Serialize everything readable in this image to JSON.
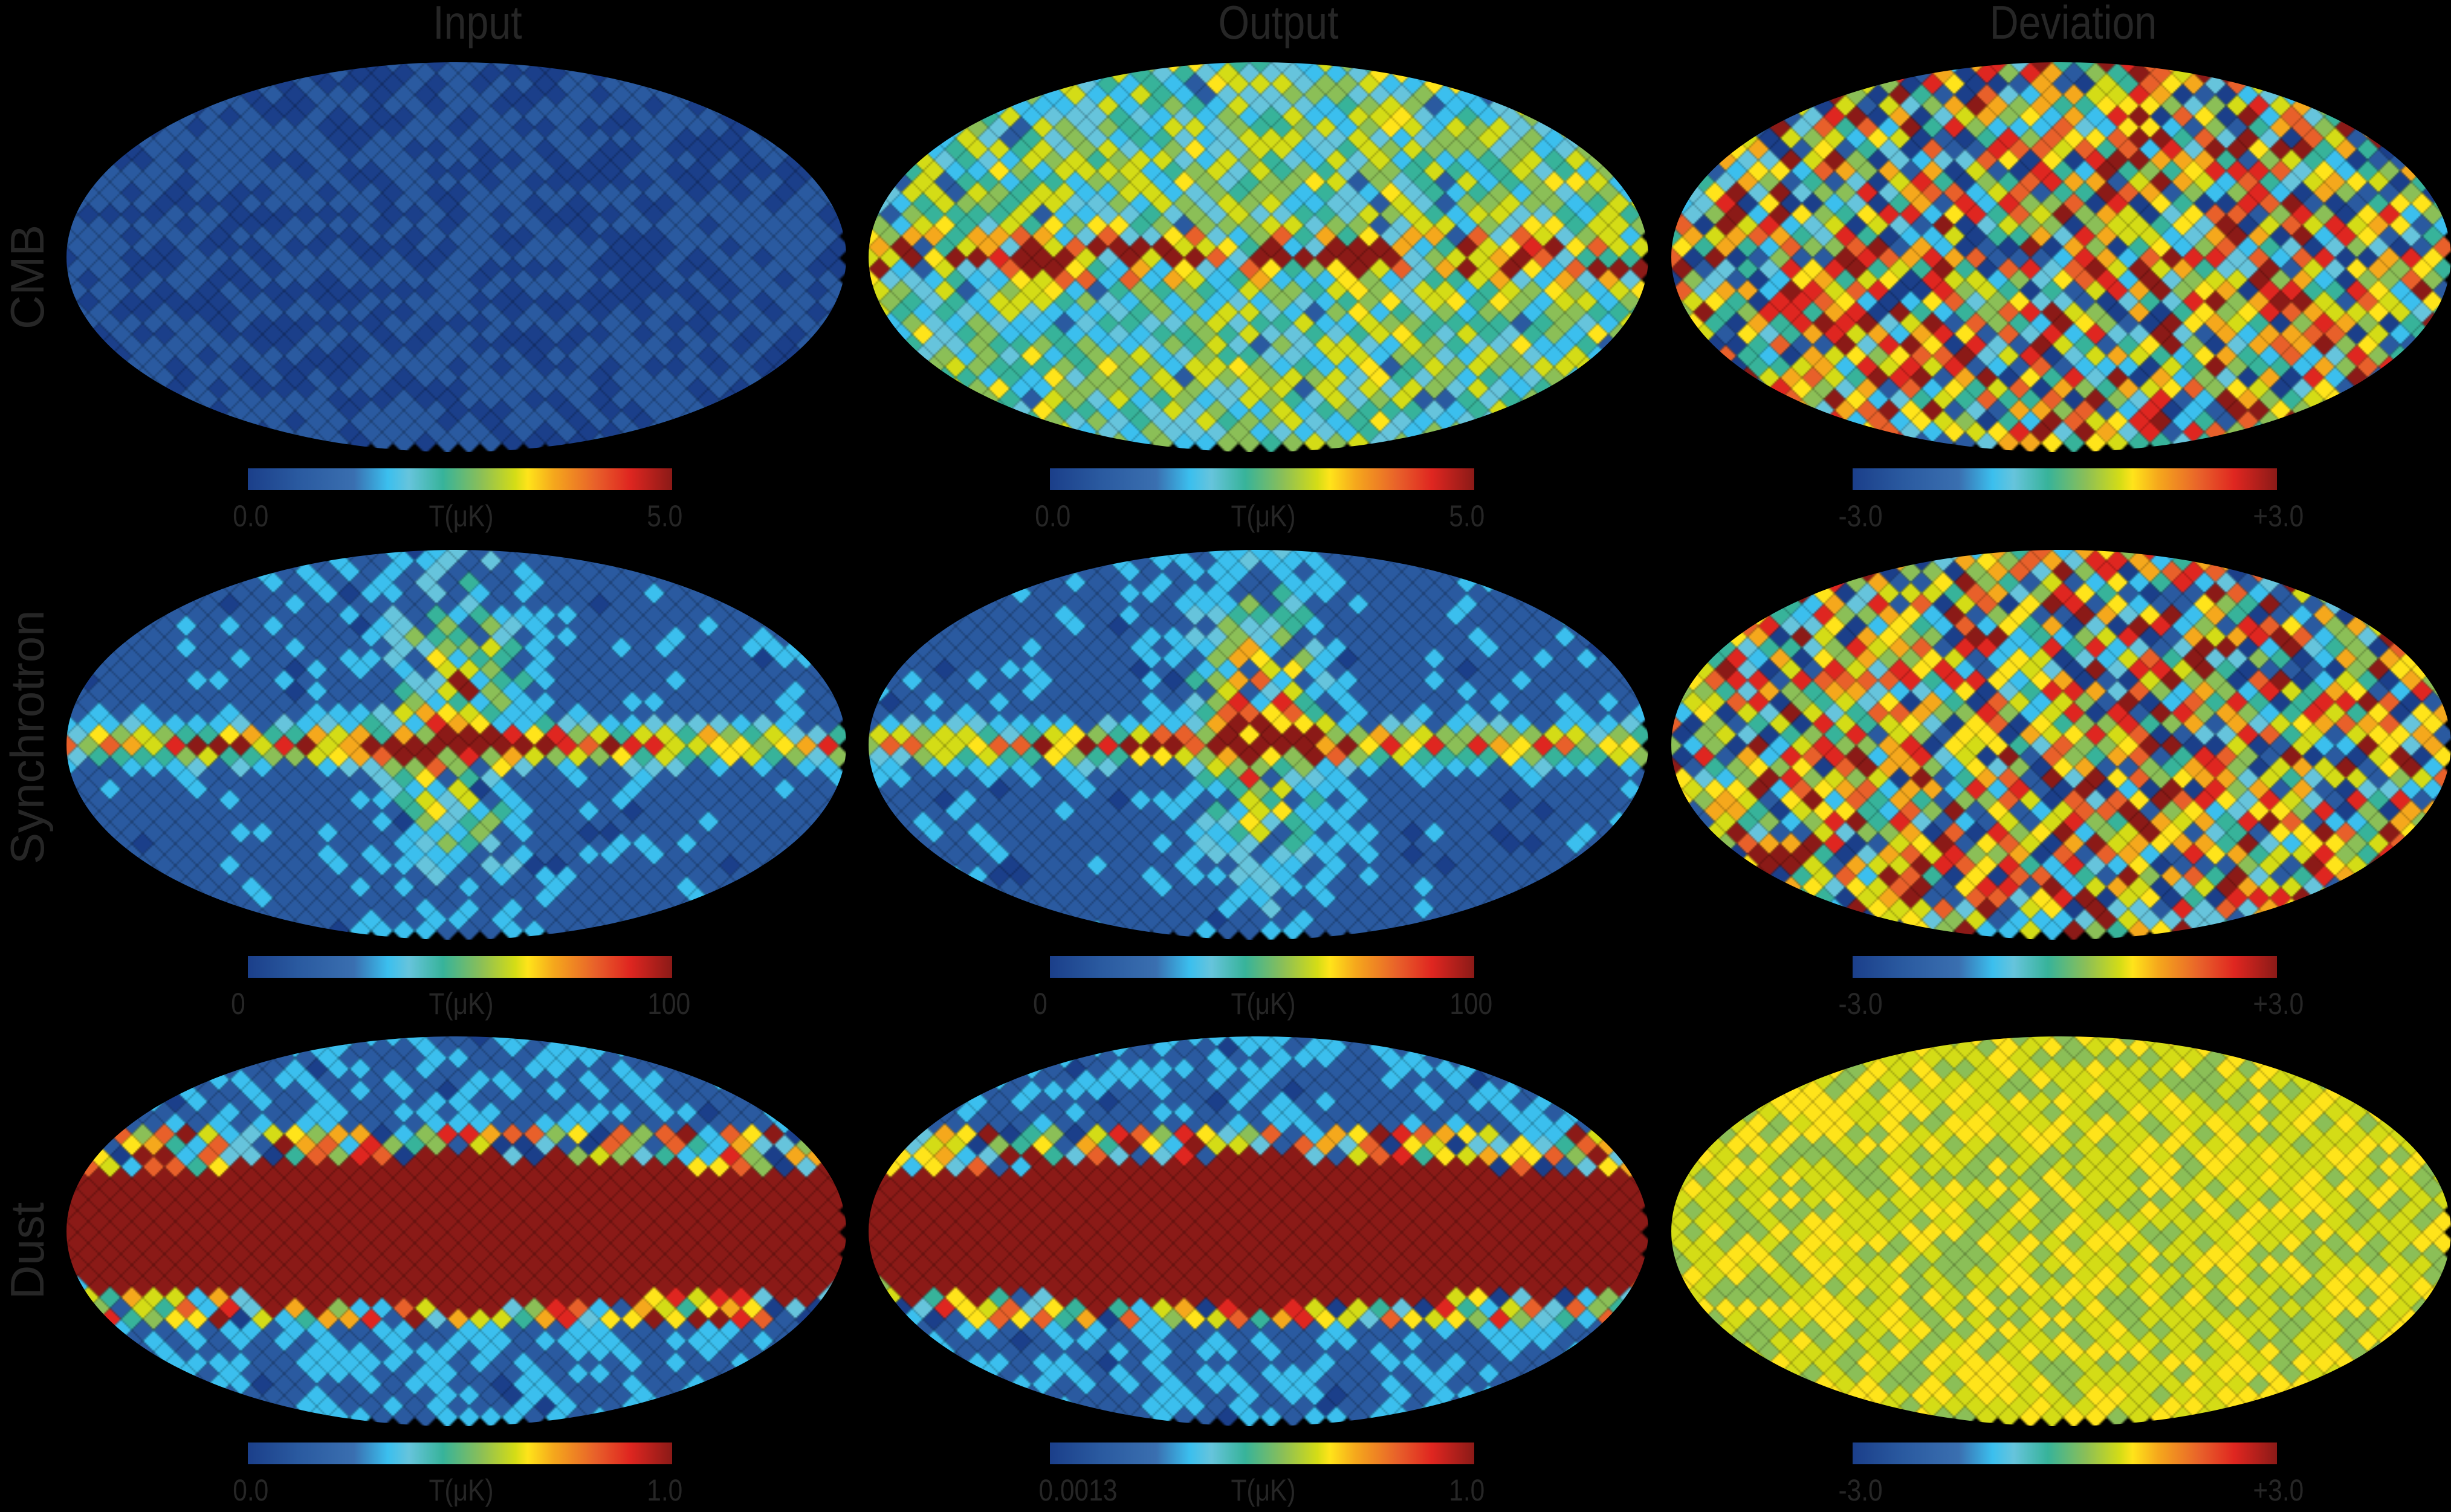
{
  "chart_data": {
    "type": "heatmap",
    "projection": "Mollweide all-sky",
    "columns": [
      "Input",
      "Output",
      "Deviation"
    ],
    "rows": [
      "CMB",
      "Synchrotron",
      "Dust"
    ],
    "colormap": [
      "#1b3f8a",
      "#2a5aa0",
      "#3bbfee",
      "#66c4dc",
      "#37b39a",
      "#8bbf57",
      "#d4dc16",
      "#ffe41a",
      "#f5a81c",
      "#e8602a",
      "#df2620",
      "#8b1a17"
    ],
    "panels": [
      {
        "row": "CMB",
        "col": "Input",
        "colorbar": {
          "min": "0.0",
          "label": "T(μK)",
          "max": "5.0"
        }
      },
      {
        "row": "CMB",
        "col": "Output",
        "colorbar": {
          "min": "0.0",
          "label": "T(μK)",
          "max": "5.0"
        }
      },
      {
        "row": "CMB",
        "col": "Deviation",
        "colorbar": {
          "min": "-3.0",
          "label": "",
          "max": "+3.0"
        }
      },
      {
        "row": "Synchrotron",
        "col": "Input",
        "colorbar": {
          "min": "0",
          "label": "T(μK)",
          "max": "100"
        }
      },
      {
        "row": "Synchrotron",
        "col": "Output",
        "colorbar": {
          "min": "0",
          "label": "T(μK)",
          "max": "100"
        }
      },
      {
        "row": "Synchrotron",
        "col": "Deviation",
        "colorbar": {
          "min": "-3.0",
          "label": "",
          "max": "+3.0"
        }
      },
      {
        "row": "Dust",
        "col": "Input",
        "colorbar": {
          "min": "0.0",
          "label": "T(μK)",
          "max": "1.0"
        }
      },
      {
        "row": "Dust",
        "col": "Output",
        "colorbar": {
          "min": "0.0013",
          "label": "T(μK)",
          "max": "1.0"
        }
      },
      {
        "row": "Dust",
        "col": "Deviation",
        "colorbar": {
          "min": "-3.0",
          "label": "",
          "max": "+3.0"
        }
      }
    ]
  },
  "titles": {
    "c0": "Input",
    "c1": "Output",
    "c2": "Deviation"
  },
  "row_labels": {
    "r0": "CMB",
    "r1": "Synchrotron",
    "r2": "Dust"
  }
}
